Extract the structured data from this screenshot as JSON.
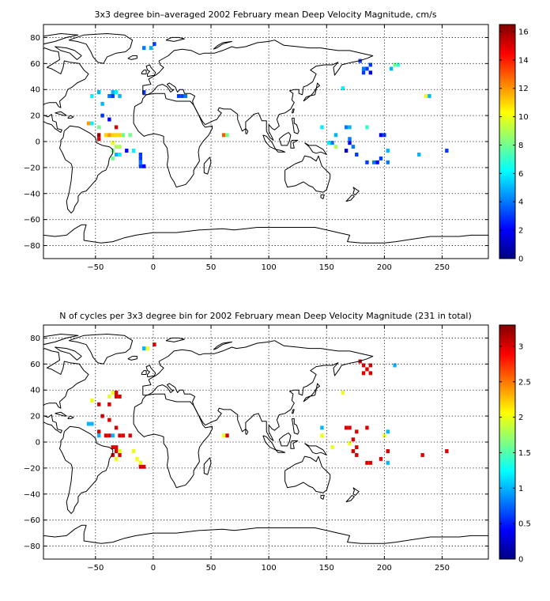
{
  "chart_data": [
    {
      "type": "heatmap",
      "title": "3x3 degree bin–averaged 2002 February mean Deep Velocity Magnitude, cm/s",
      "xlim": [
        -95,
        290
      ],
      "ylim": [
        -90,
        90
      ],
      "xticks": [
        -50,
        0,
        50,
        100,
        150,
        200,
        250
      ],
      "yticks": [
        80,
        60,
        40,
        20,
        0,
        -20,
        -40,
        -60,
        -80
      ],
      "colorbar": {
        "min": 0,
        "max": 16.5,
        "ticks": [
          0,
          2,
          4,
          6,
          8,
          10,
          12,
          14,
          16
        ]
      },
      "grid": true,
      "points": [
        {
          "lon": 1,
          "lat": 75,
          "v": 3
        },
        {
          "lon": -8,
          "lat": 72,
          "v": 4
        },
        {
          "lon": -2,
          "lat": 72,
          "v": 5
        },
        {
          "lon": -47,
          "lat": 38,
          "v": 5
        },
        {
          "lon": -53,
          "lat": 35,
          "v": 6
        },
        {
          "lon": -35,
          "lat": 38,
          "v": 5
        },
        {
          "lon": -32,
          "lat": 38,
          "v": 6
        },
        {
          "lon": -38,
          "lat": 35,
          "v": 4
        },
        {
          "lon": -35,
          "lat": 35,
          "v": 3
        },
        {
          "lon": -29,
          "lat": 35,
          "v": 5
        },
        {
          "lon": -44,
          "lat": 29,
          "v": 5
        },
        {
          "lon": -8,
          "lat": 38,
          "v": 3
        },
        {
          "lon": 22,
          "lat": 35,
          "v": 3
        },
        {
          "lon": 25,
          "lat": 35,
          "v": 3
        },
        {
          "lon": 28,
          "lat": 35,
          "v": 4
        },
        {
          "lon": -44,
          "lat": 20,
          "v": 3
        },
        {
          "lon": -38,
          "lat": 17,
          "v": 2
        },
        {
          "lon": -56,
          "lat": 14,
          "v": 12
        },
        {
          "lon": -53,
          "lat": 14,
          "v": 6
        },
        {
          "lon": -32,
          "lat": 11,
          "v": 15
        },
        {
          "lon": -47,
          "lat": 11,
          "v": 8
        },
        {
          "lon": -47,
          "lat": 5,
          "v": 16
        },
        {
          "lon": -47,
          "lat": 2,
          "v": 15
        },
        {
          "lon": -41,
          "lat": 5,
          "v": 11
        },
        {
          "lon": -38,
          "lat": 5,
          "v": 12
        },
        {
          "lon": -35,
          "lat": 5,
          "v": 11
        },
        {
          "lon": -32,
          "lat": 5,
          "v": 11
        },
        {
          "lon": -29,
          "lat": 5,
          "v": 11
        },
        {
          "lon": -26,
          "lat": 5,
          "v": 8
        },
        {
          "lon": -20,
          "lat": 5,
          "v": 8
        },
        {
          "lon": -35,
          "lat": -1,
          "v": 10
        },
        {
          "lon": -32,
          "lat": -4,
          "v": 9
        },
        {
          "lon": -29,
          "lat": -4,
          "v": 9
        },
        {
          "lon": -35,
          "lat": -7,
          "v": 8
        },
        {
          "lon": -23,
          "lat": -7,
          "v": 2
        },
        {
          "lon": -17,
          "lat": -7,
          "v": 6
        },
        {
          "lon": -32,
          "lat": -10,
          "v": 5
        },
        {
          "lon": -29,
          "lat": -10,
          "v": 6
        },
        {
          "lon": -35,
          "lat": -13,
          "v": 8
        },
        {
          "lon": -11,
          "lat": -10,
          "v": 3
        },
        {
          "lon": -11,
          "lat": -13,
          "v": 3
        },
        {
          "lon": -11,
          "lat": -16,
          "v": 4
        },
        {
          "lon": -11,
          "lat": -19,
          "v": 3
        },
        {
          "lon": -8,
          "lat": -19,
          "v": 2
        },
        {
          "lon": 61,
          "lat": 5,
          "v": 13
        },
        {
          "lon": 64,
          "lat": 5,
          "v": 8
        },
        {
          "lon": 179,
          "lat": 62,
          "v": 3
        },
        {
          "lon": 182,
          "lat": 56,
          "v": 4
        },
        {
          "lon": 185,
          "lat": 56,
          "v": 3
        },
        {
          "lon": 188,
          "lat": 59,
          "v": 3
        },
        {
          "lon": 182,
          "lat": 53,
          "v": 3
        },
        {
          "lon": 188,
          "lat": 53,
          "v": 2
        },
        {
          "lon": 209,
          "lat": 59,
          "v": 8
        },
        {
          "lon": 212,
          "lat": 59,
          "v": 7
        },
        {
          "lon": 206,
          "lat": 56,
          "v": 5
        },
        {
          "lon": 164,
          "lat": 41,
          "v": 6
        },
        {
          "lon": 236,
          "lat": 35,
          "v": 10
        },
        {
          "lon": 239,
          "lat": 35,
          "v": 5
        },
        {
          "lon": 146,
          "lat": 11,
          "v": 6
        },
        {
          "lon": 167,
          "lat": 11,
          "v": 4
        },
        {
          "lon": 170,
          "lat": 11,
          "v": 5
        },
        {
          "lon": 185,
          "lat": 11,
          "v": 7
        },
        {
          "lon": 158,
          "lat": 5,
          "v": 5
        },
        {
          "lon": 197,
          "lat": 5,
          "v": 2
        },
        {
          "lon": 200,
          "lat": 5,
          "v": 3
        },
        {
          "lon": 170,
          "lat": 2,
          "v": 4
        },
        {
          "lon": 152,
          "lat": -1,
          "v": 6
        },
        {
          "lon": 155,
          "lat": -1,
          "v": 4
        },
        {
          "lon": 158,
          "lat": -4,
          "v": 9
        },
        {
          "lon": 170,
          "lat": -1,
          "v": 2
        },
        {
          "lon": 173,
          "lat": -4,
          "v": 4
        },
        {
          "lon": 167,
          "lat": -7,
          "v": 1
        },
        {
          "lon": 203,
          "lat": -7,
          "v": 5
        },
        {
          "lon": 176,
          "lat": -10,
          "v": 3
        },
        {
          "lon": 185,
          "lat": -16,
          "v": 3
        },
        {
          "lon": 191,
          "lat": -16,
          "v": 4
        },
        {
          "lon": 194,
          "lat": -16,
          "v": 2
        },
        {
          "lon": 197,
          "lat": -13,
          "v": 3
        },
        {
          "lon": 203,
          "lat": -16,
          "v": 4
        },
        {
          "lon": 230,
          "lat": -10,
          "v": 5
        },
        {
          "lon": 254,
          "lat": -7,
          "v": 3
        }
      ]
    },
    {
      "type": "heatmap",
      "title": "N of cycles per 3x3 degree bin for 2002 February mean Deep Velocity Magnitude (231 in total)",
      "xlim": [
        -95,
        290
      ],
      "ylim": [
        -90,
        90
      ],
      "xticks": [
        -50,
        0,
        50,
        100,
        150,
        200,
        250
      ],
      "yticks": [
        80,
        60,
        40,
        20,
        0,
        -20,
        -40,
        -60,
        -80
      ],
      "colorbar": {
        "min": 0,
        "max": 3.3,
        "ticks": [
          0,
          0.5,
          1,
          1.5,
          2,
          2.5,
          3
        ]
      },
      "grid": true,
      "points": [
        {
          "lon": 1,
          "lat": 75,
          "v": 3
        },
        {
          "lon": -5,
          "lat": 72,
          "v": 2
        },
        {
          "lon": -8,
          "lat": 72,
          "v": 1
        },
        {
          "lon": -35,
          "lat": 38,
          "v": 2
        },
        {
          "lon": -32,
          "lat": 38,
          "v": 3
        },
        {
          "lon": -38,
          "lat": 35,
          "v": 2
        },
        {
          "lon": -32,
          "lat": 35,
          "v": 3
        },
        {
          "lon": -29,
          "lat": 35,
          "v": 3
        },
        {
          "lon": -53,
          "lat": 32,
          "v": 2
        },
        {
          "lon": -47,
          "lat": 29,
          "v": 3
        },
        {
          "lon": -38,
          "lat": 29,
          "v": 3
        },
        {
          "lon": -44,
          "lat": 20,
          "v": 3
        },
        {
          "lon": -56,
          "lat": 14,
          "v": 1
        },
        {
          "lon": -53,
          "lat": 14,
          "v": 1
        },
        {
          "lon": -38,
          "lat": 17,
          "v": 3
        },
        {
          "lon": -32,
          "lat": 11,
          "v": 3
        },
        {
          "lon": -47,
          "lat": 8,
          "v": 3
        },
        {
          "lon": -47,
          "lat": 5,
          "v": 1
        },
        {
          "lon": -41,
          "lat": 5,
          "v": 3
        },
        {
          "lon": -38,
          "lat": 5,
          "v": 3
        },
        {
          "lon": -35,
          "lat": 5,
          "v": 1
        },
        {
          "lon": -29,
          "lat": 5,
          "v": 3
        },
        {
          "lon": -26,
          "lat": 5,
          "v": 3
        },
        {
          "lon": -20,
          "lat": 5,
          "v": 3
        },
        {
          "lon": -35,
          "lat": -4,
          "v": 3
        },
        {
          "lon": -32,
          "lat": -4,
          "v": 3
        },
        {
          "lon": -32,
          "lat": -7,
          "v": 3
        },
        {
          "lon": -29,
          "lat": -7,
          "v": 2
        },
        {
          "lon": -35,
          "lat": -10,
          "v": 3
        },
        {
          "lon": -29,
          "lat": -10,
          "v": 3
        },
        {
          "lon": -32,
          "lat": -13,
          "v": 2
        },
        {
          "lon": -17,
          "lat": -7,
          "v": 2
        },
        {
          "lon": -14,
          "lat": -13,
          "v": 2
        },
        {
          "lon": -11,
          "lat": -16,
          "v": 2
        },
        {
          "lon": -11,
          "lat": -19,
          "v": 3
        },
        {
          "lon": -8,
          "lat": -19,
          "v": 3
        },
        {
          "lon": 61,
          "lat": 5,
          "v": 2
        },
        {
          "lon": 64,
          "lat": 5,
          "v": 3
        },
        {
          "lon": 179,
          "lat": 62,
          "v": 3
        },
        {
          "lon": 182,
          "lat": 59,
          "v": 3
        },
        {
          "lon": 185,
          "lat": 56,
          "v": 3
        },
        {
          "lon": 188,
          "lat": 59,
          "v": 3
        },
        {
          "lon": 182,
          "lat": 53,
          "v": 3
        },
        {
          "lon": 188,
          "lat": 53,
          "v": 3
        },
        {
          "lon": 209,
          "lat": 59,
          "v": 1
        },
        {
          "lon": 164,
          "lat": 38,
          "v": 2
        },
        {
          "lon": 146,
          "lat": 11,
          "v": 1
        },
        {
          "lon": 167,
          "lat": 11,
          "v": 3
        },
        {
          "lon": 170,
          "lat": 11,
          "v": 3
        },
        {
          "lon": 185,
          "lat": 11,
          "v": 3
        },
        {
          "lon": 176,
          "lat": 8,
          "v": 3
        },
        {
          "lon": 146,
          "lat": 5,
          "v": 2
        },
        {
          "lon": 200,
          "lat": 5,
          "v": 2
        },
        {
          "lon": 203,
          "lat": 8,
          "v": 1
        },
        {
          "lon": 173,
          "lat": 2,
          "v": 3
        },
        {
          "lon": 170,
          "lat": -1,
          "v": 2
        },
        {
          "lon": 155,
          "lat": -4,
          "v": 2
        },
        {
          "lon": 176,
          "lat": -4,
          "v": 3
        },
        {
          "lon": 173,
          "lat": -7,
          "v": 3
        },
        {
          "lon": 203,
          "lat": -7,
          "v": 3
        },
        {
          "lon": 176,
          "lat": -10,
          "v": 3
        },
        {
          "lon": 185,
          "lat": -16,
          "v": 3
        },
        {
          "lon": 188,
          "lat": -16,
          "v": 3
        },
        {
          "lon": 197,
          "lat": -13,
          "v": 3
        },
        {
          "lon": 203,
          "lat": -16,
          "v": 1
        },
        {
          "lon": 233,
          "lat": -10,
          "v": 3
        },
        {
          "lon": 254,
          "lat": -7,
          "v": 3
        }
      ]
    }
  ]
}
